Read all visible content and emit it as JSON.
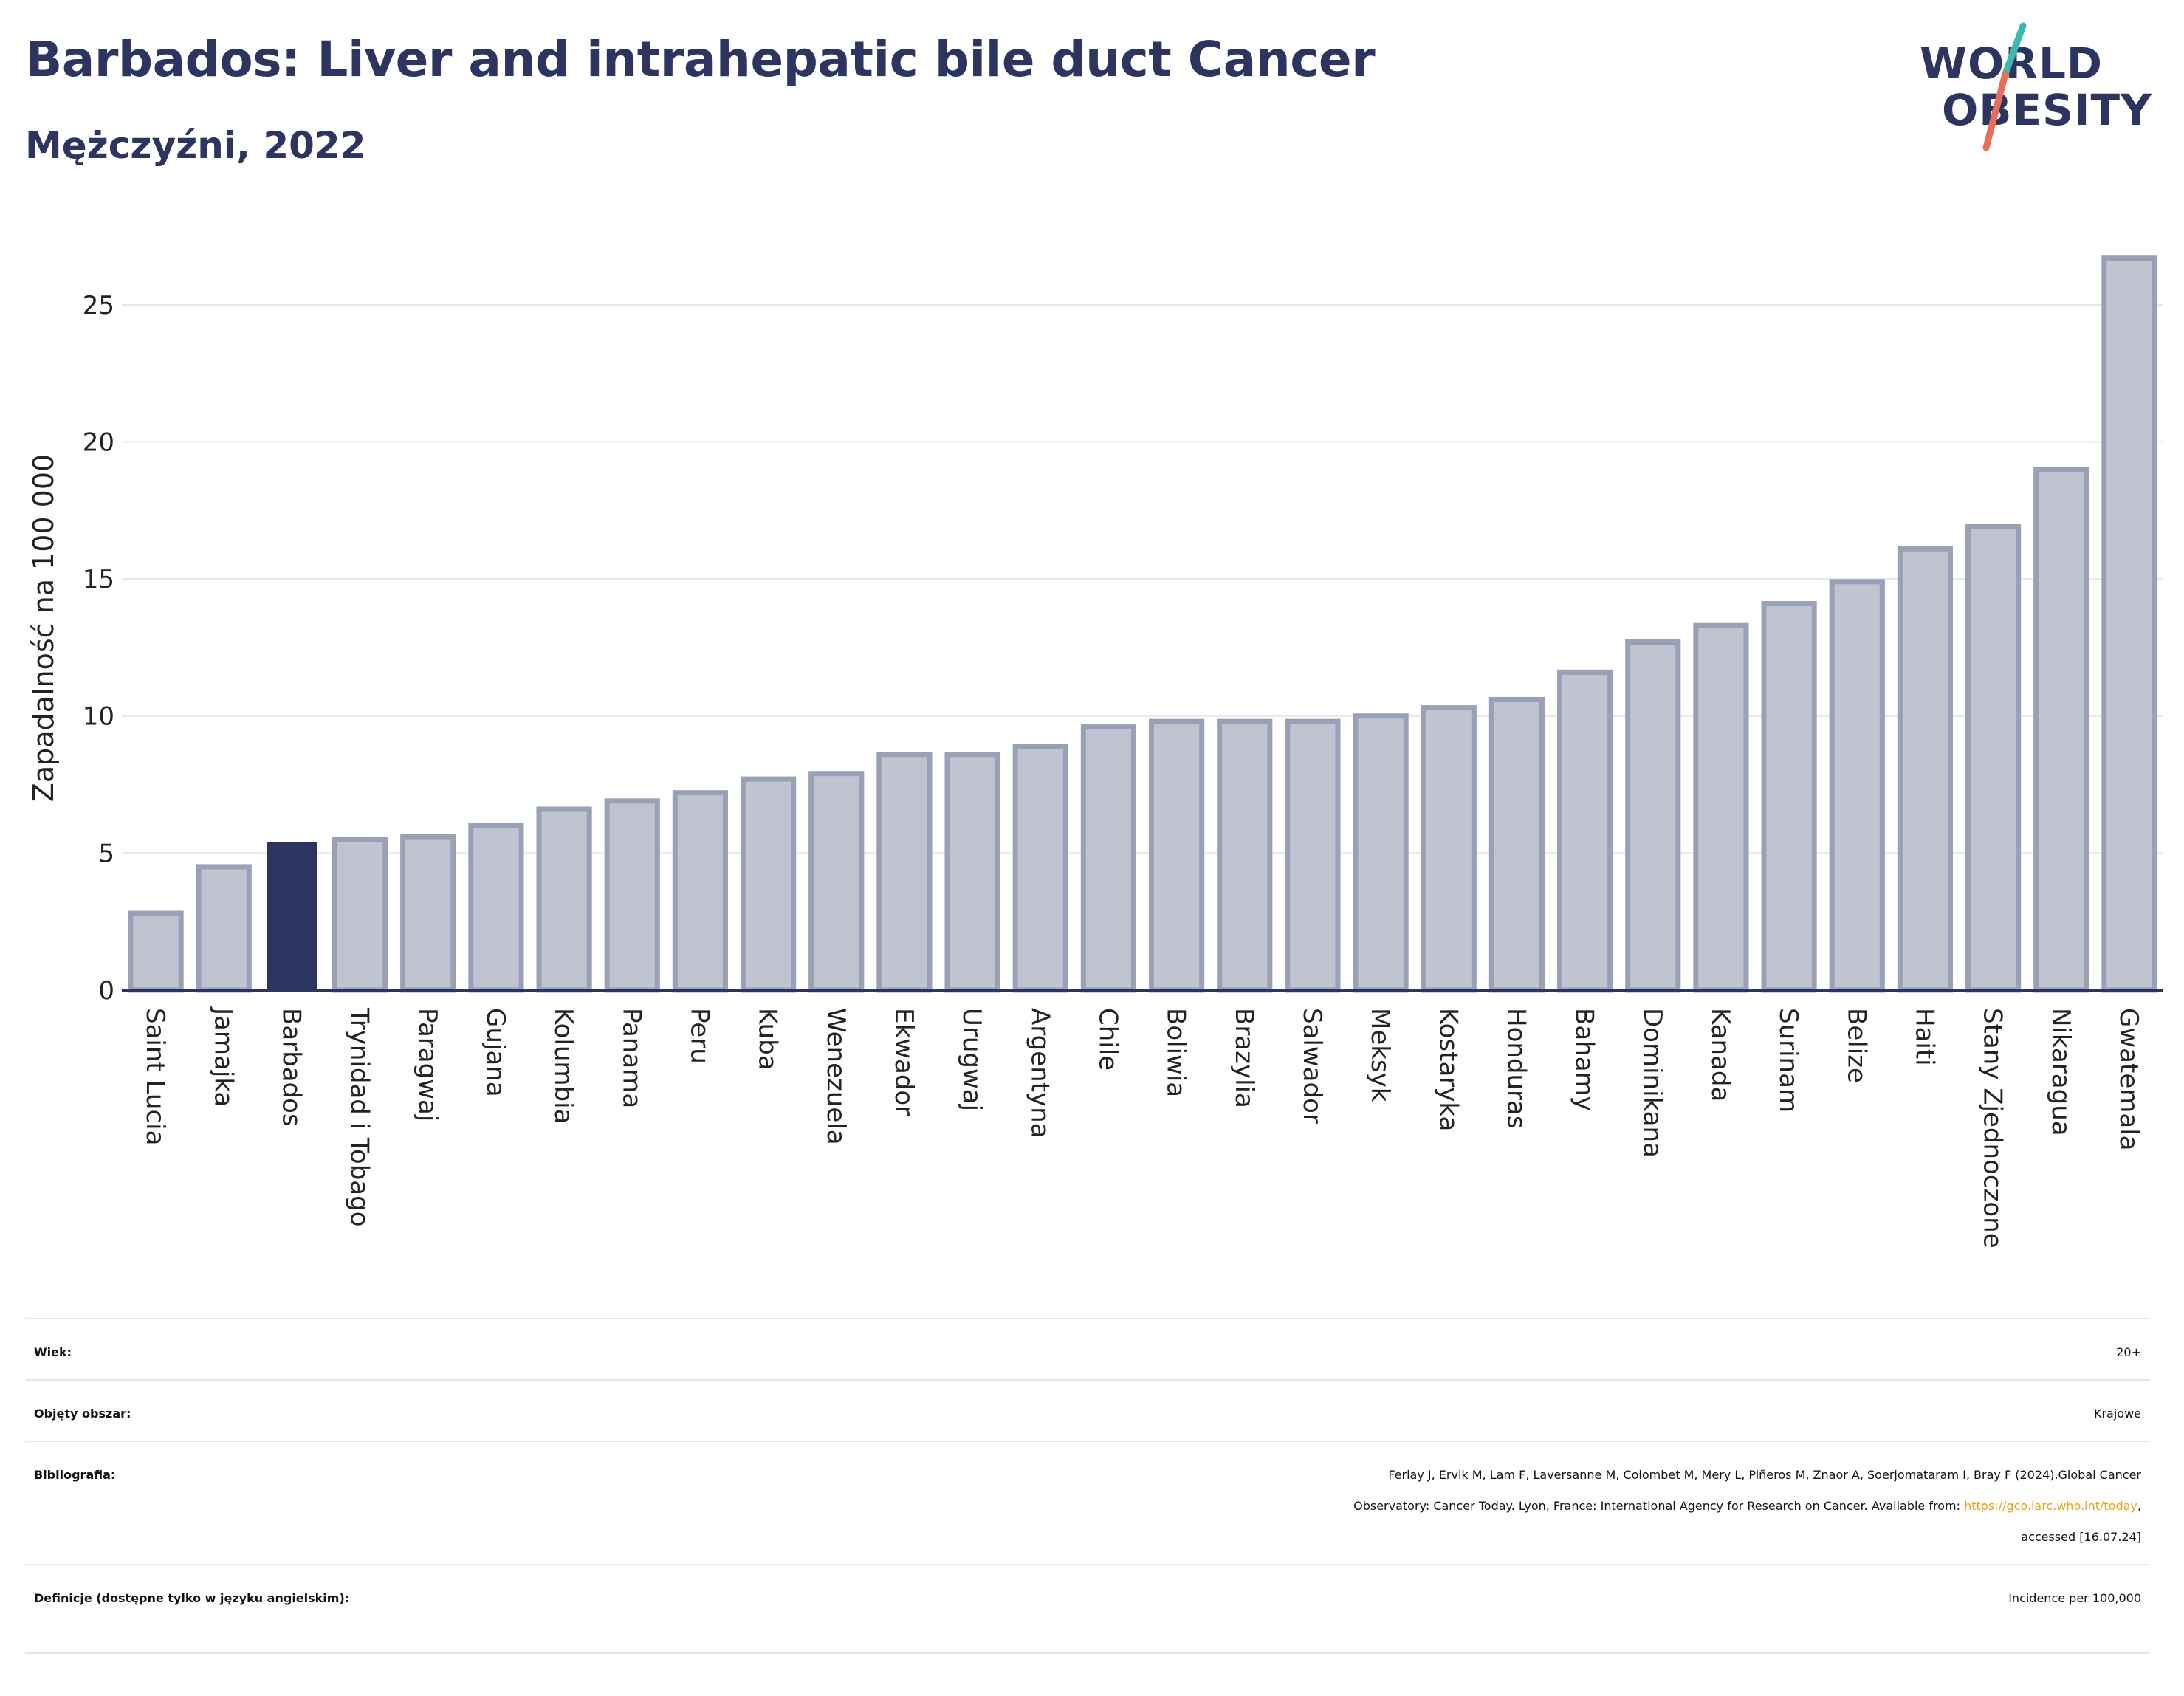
{
  "header": {
    "title": "Barbados: Liver and intrahepatic bile duct Cancer",
    "subtitle": "Mężczyźni, 2022"
  },
  "logo": {
    "line1": "WORLD",
    "line2": "OBESITY",
    "accent_teal": "#3bb8b0",
    "accent_coral": "#e8705a"
  },
  "colors": {
    "highlight_bar": "#2b3560",
    "other_bar_fill": "#c0c4d0",
    "other_bar_stroke": "#9aa0b5",
    "grid": "#e6e6ea",
    "axis": "#2b3560",
    "link": "#e8a21a"
  },
  "chart_data": {
    "type": "bar",
    "title": "Barbados: Liver and intrahepatic bile duct Cancer",
    "subtitle": "Mężczyźni, 2022",
    "ylabel": "Zapadalność na 100 000",
    "xlabel": "",
    "ylim": [
      0,
      27.5
    ],
    "yticks": [
      0,
      5,
      10,
      15,
      20,
      25
    ],
    "grid": true,
    "highlight": "Barbados",
    "categories": [
      "Saint Lucia",
      "Jamajka",
      "Barbados",
      "Trynidad i Tobago",
      "Paragwaj",
      "Gujana",
      "Kolumbia",
      "Panama",
      "Peru",
      "Kuba",
      "Wenezuela",
      "Ekwador",
      "Urugwaj",
      "Argentyna",
      "Chile",
      "Boliwia",
      "Brazylia",
      "Salwador",
      "Meksyk",
      "Kostaryka",
      "Honduras",
      "Bahamy",
      "Dominikana",
      "Kanada",
      "Surinam",
      "Belize",
      "Haiti",
      "Stany Zjednoczone",
      "Nikaragua",
      "Gwatemala"
    ],
    "values": [
      2.8,
      4.5,
      5.4,
      5.5,
      5.6,
      6.0,
      6.6,
      6.9,
      7.2,
      7.7,
      7.9,
      8.6,
      8.6,
      8.9,
      9.6,
      9.8,
      9.8,
      9.8,
      10.0,
      10.3,
      10.6,
      11.6,
      12.7,
      13.3,
      14.1,
      14.9,
      16.1,
      16.9,
      19.0,
      26.7
    ]
  },
  "meta": {
    "rows": [
      {
        "label": "Wiek:",
        "value": "20+"
      },
      {
        "label": "Objęty obszar:",
        "value": "Krajowe"
      },
      {
        "label": "Bibliografia:",
        "value_line1": "Ferlay J, Ervik M, Lam F, Laversanne M, Colombet M, Mery L, Piñeros M, Znaor A, Soerjomataram I, Bray F (2024).Global Cancer",
        "value_line2_pre": "Observatory: Cancer Today. Lyon, France: International Agency for Research on Cancer. Available from: ",
        "link_text": "https://gco.iarc.who.int/today",
        "value_line2_post": ",",
        "value_line3": "accessed [16.07.24]"
      },
      {
        "label": "Definicje (dostępne tylko w języku angielskim):",
        "value": "Incidence per 100,000"
      }
    ]
  }
}
